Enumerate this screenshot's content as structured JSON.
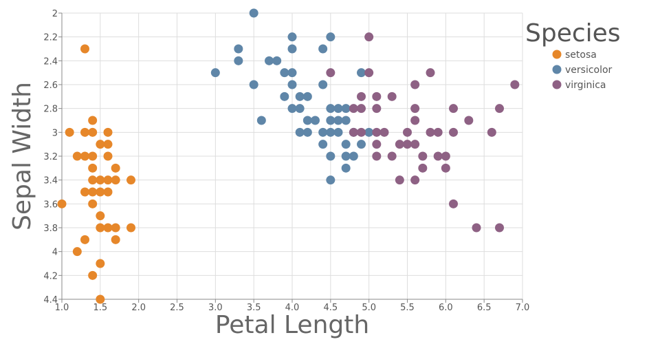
{
  "chart_data": {
    "type": "scatter",
    "xlabel": "Petal Length",
    "ylabel": "Sepal Width",
    "xlim": [
      1.0,
      7.0
    ],
    "ylim": [
      2.0,
      4.4
    ],
    "y_reversed": true,
    "x_ticks": [
      1.0,
      1.5,
      2.0,
      2.5,
      3.0,
      3.5,
      4.0,
      4.5,
      5.0,
      5.5,
      6.0,
      6.5,
      7.0
    ],
    "x_tick_labels": [
      "1.0",
      "1.5",
      "2.0",
      "2.5",
      "3.0",
      "3.5",
      "4.0",
      "4.5",
      "5.0",
      "5.5",
      "6.0",
      "6.5",
      "7.0"
    ],
    "y_ticks": [
      2.0,
      2.2,
      2.4,
      2.6,
      2.8,
      3.0,
      3.2,
      3.4,
      3.6,
      3.8,
      4.0,
      4.2,
      4.4
    ],
    "y_tick_labels": [
      "2",
      "2.2",
      "2.4",
      "2.6",
      "2.8",
      "3",
      "3.2",
      "3.4",
      "3.6",
      "3.8",
      "4",
      "4.2",
      "4.4"
    ],
    "grid": true,
    "legend": {
      "title": "Species",
      "placement": "top-right"
    },
    "series": [
      {
        "name": "setosa",
        "color": "#e6872a",
        "points": [
          [
            1.3,
            2.3
          ],
          [
            1.1,
            3.0
          ],
          [
            1.3,
            3.0
          ],
          [
            1.4,
            3.0
          ],
          [
            1.6,
            3.0
          ],
          [
            1.4,
            2.9
          ],
          [
            1.5,
            3.1
          ],
          [
            1.6,
            3.1
          ],
          [
            1.2,
            3.2
          ],
          [
            1.3,
            3.2
          ],
          [
            1.4,
            3.2
          ],
          [
            1.6,
            3.2
          ],
          [
            1.4,
            3.3
          ],
          [
            1.7,
            3.3
          ],
          [
            1.4,
            3.4
          ],
          [
            1.5,
            3.4
          ],
          [
            1.6,
            3.4
          ],
          [
            1.7,
            3.4
          ],
          [
            1.9,
            3.4
          ],
          [
            1.3,
            3.5
          ],
          [
            1.4,
            3.5
          ],
          [
            1.5,
            3.5
          ],
          [
            1.6,
            3.5
          ],
          [
            1.0,
            3.6
          ],
          [
            1.4,
            3.6
          ],
          [
            1.5,
            3.7
          ],
          [
            1.5,
            3.8
          ],
          [
            1.6,
            3.8
          ],
          [
            1.7,
            3.8
          ],
          [
            1.9,
            3.8
          ],
          [
            1.3,
            3.9
          ],
          [
            1.7,
            3.9
          ],
          [
            1.2,
            4.0
          ],
          [
            1.5,
            4.1
          ],
          [
            1.4,
            4.2
          ],
          [
            1.5,
            4.4
          ]
        ]
      },
      {
        "name": "versicolor",
        "color": "#5f86a8",
        "points": [
          [
            3.5,
            2.0
          ],
          [
            4.0,
            2.2
          ],
          [
            4.5,
            2.2
          ],
          [
            3.3,
            2.3
          ],
          [
            4.0,
            2.3
          ],
          [
            4.4,
            2.3
          ],
          [
            3.3,
            2.4
          ],
          [
            3.7,
            2.4
          ],
          [
            3.8,
            2.4
          ],
          [
            3.0,
            2.5
          ],
          [
            3.9,
            2.5
          ],
          [
            4.0,
            2.5
          ],
          [
            4.9,
            2.5
          ],
          [
            3.5,
            2.6
          ],
          [
            4.0,
            2.6
          ],
          [
            4.4,
            2.6
          ],
          [
            3.9,
            2.7
          ],
          [
            4.1,
            2.7
          ],
          [
            4.2,
            2.7
          ],
          [
            4.0,
            2.8
          ],
          [
            4.1,
            2.8
          ],
          [
            4.5,
            2.8
          ],
          [
            4.6,
            2.8
          ],
          [
            4.7,
            2.8
          ],
          [
            3.6,
            2.9
          ],
          [
            4.2,
            2.9
          ],
          [
            4.3,
            2.9
          ],
          [
            4.5,
            2.9
          ],
          [
            4.6,
            2.9
          ],
          [
            4.7,
            2.9
          ],
          [
            4.1,
            3.0
          ],
          [
            4.2,
            3.0
          ],
          [
            4.4,
            3.0
          ],
          [
            4.5,
            3.0
          ],
          [
            4.6,
            3.0
          ],
          [
            4.8,
            3.0
          ],
          [
            5.0,
            3.0
          ],
          [
            4.4,
            3.1
          ],
          [
            4.7,
            3.1
          ],
          [
            4.9,
            3.1
          ],
          [
            4.5,
            3.2
          ],
          [
            4.7,
            3.2
          ],
          [
            4.8,
            3.2
          ],
          [
            4.7,
            3.3
          ],
          [
            4.5,
            3.4
          ]
        ]
      },
      {
        "name": "virginica",
        "color": "#8e6184",
        "points": [
          [
            5.0,
            2.2
          ],
          [
            4.5,
            2.5
          ],
          [
            5.0,
            2.5
          ],
          [
            5.8,
            2.5
          ],
          [
            5.6,
            2.6
          ],
          [
            6.9,
            2.6
          ],
          [
            4.9,
            2.7
          ],
          [
            5.1,
            2.7
          ],
          [
            5.3,
            2.7
          ],
          [
            4.8,
            2.8
          ],
          [
            4.9,
            2.8
          ],
          [
            5.1,
            2.8
          ],
          [
            5.6,
            2.8
          ],
          [
            6.1,
            2.8
          ],
          [
            6.7,
            2.8
          ],
          [
            5.6,
            2.9
          ],
          [
            6.3,
            2.9
          ],
          [
            4.8,
            3.0
          ],
          [
            4.9,
            3.0
          ],
          [
            5.1,
            3.0
          ],
          [
            5.2,
            3.0
          ],
          [
            5.5,
            3.0
          ],
          [
            5.8,
            3.0
          ],
          [
            5.9,
            3.0
          ],
          [
            6.1,
            3.0
          ],
          [
            6.6,
            3.0
          ],
          [
            5.1,
            3.1
          ],
          [
            5.4,
            3.1
          ],
          [
            5.5,
            3.1
          ],
          [
            5.6,
            3.1
          ],
          [
            5.1,
            3.2
          ],
          [
            5.3,
            3.2
          ],
          [
            5.7,
            3.2
          ],
          [
            5.9,
            3.2
          ],
          [
            6.0,
            3.2
          ],
          [
            5.7,
            3.3
          ],
          [
            6.0,
            3.3
          ],
          [
            5.4,
            3.4
          ],
          [
            5.6,
            3.4
          ],
          [
            6.1,
            3.6
          ],
          [
            6.4,
            3.8
          ],
          [
            6.7,
            3.8
          ]
        ]
      }
    ]
  }
}
